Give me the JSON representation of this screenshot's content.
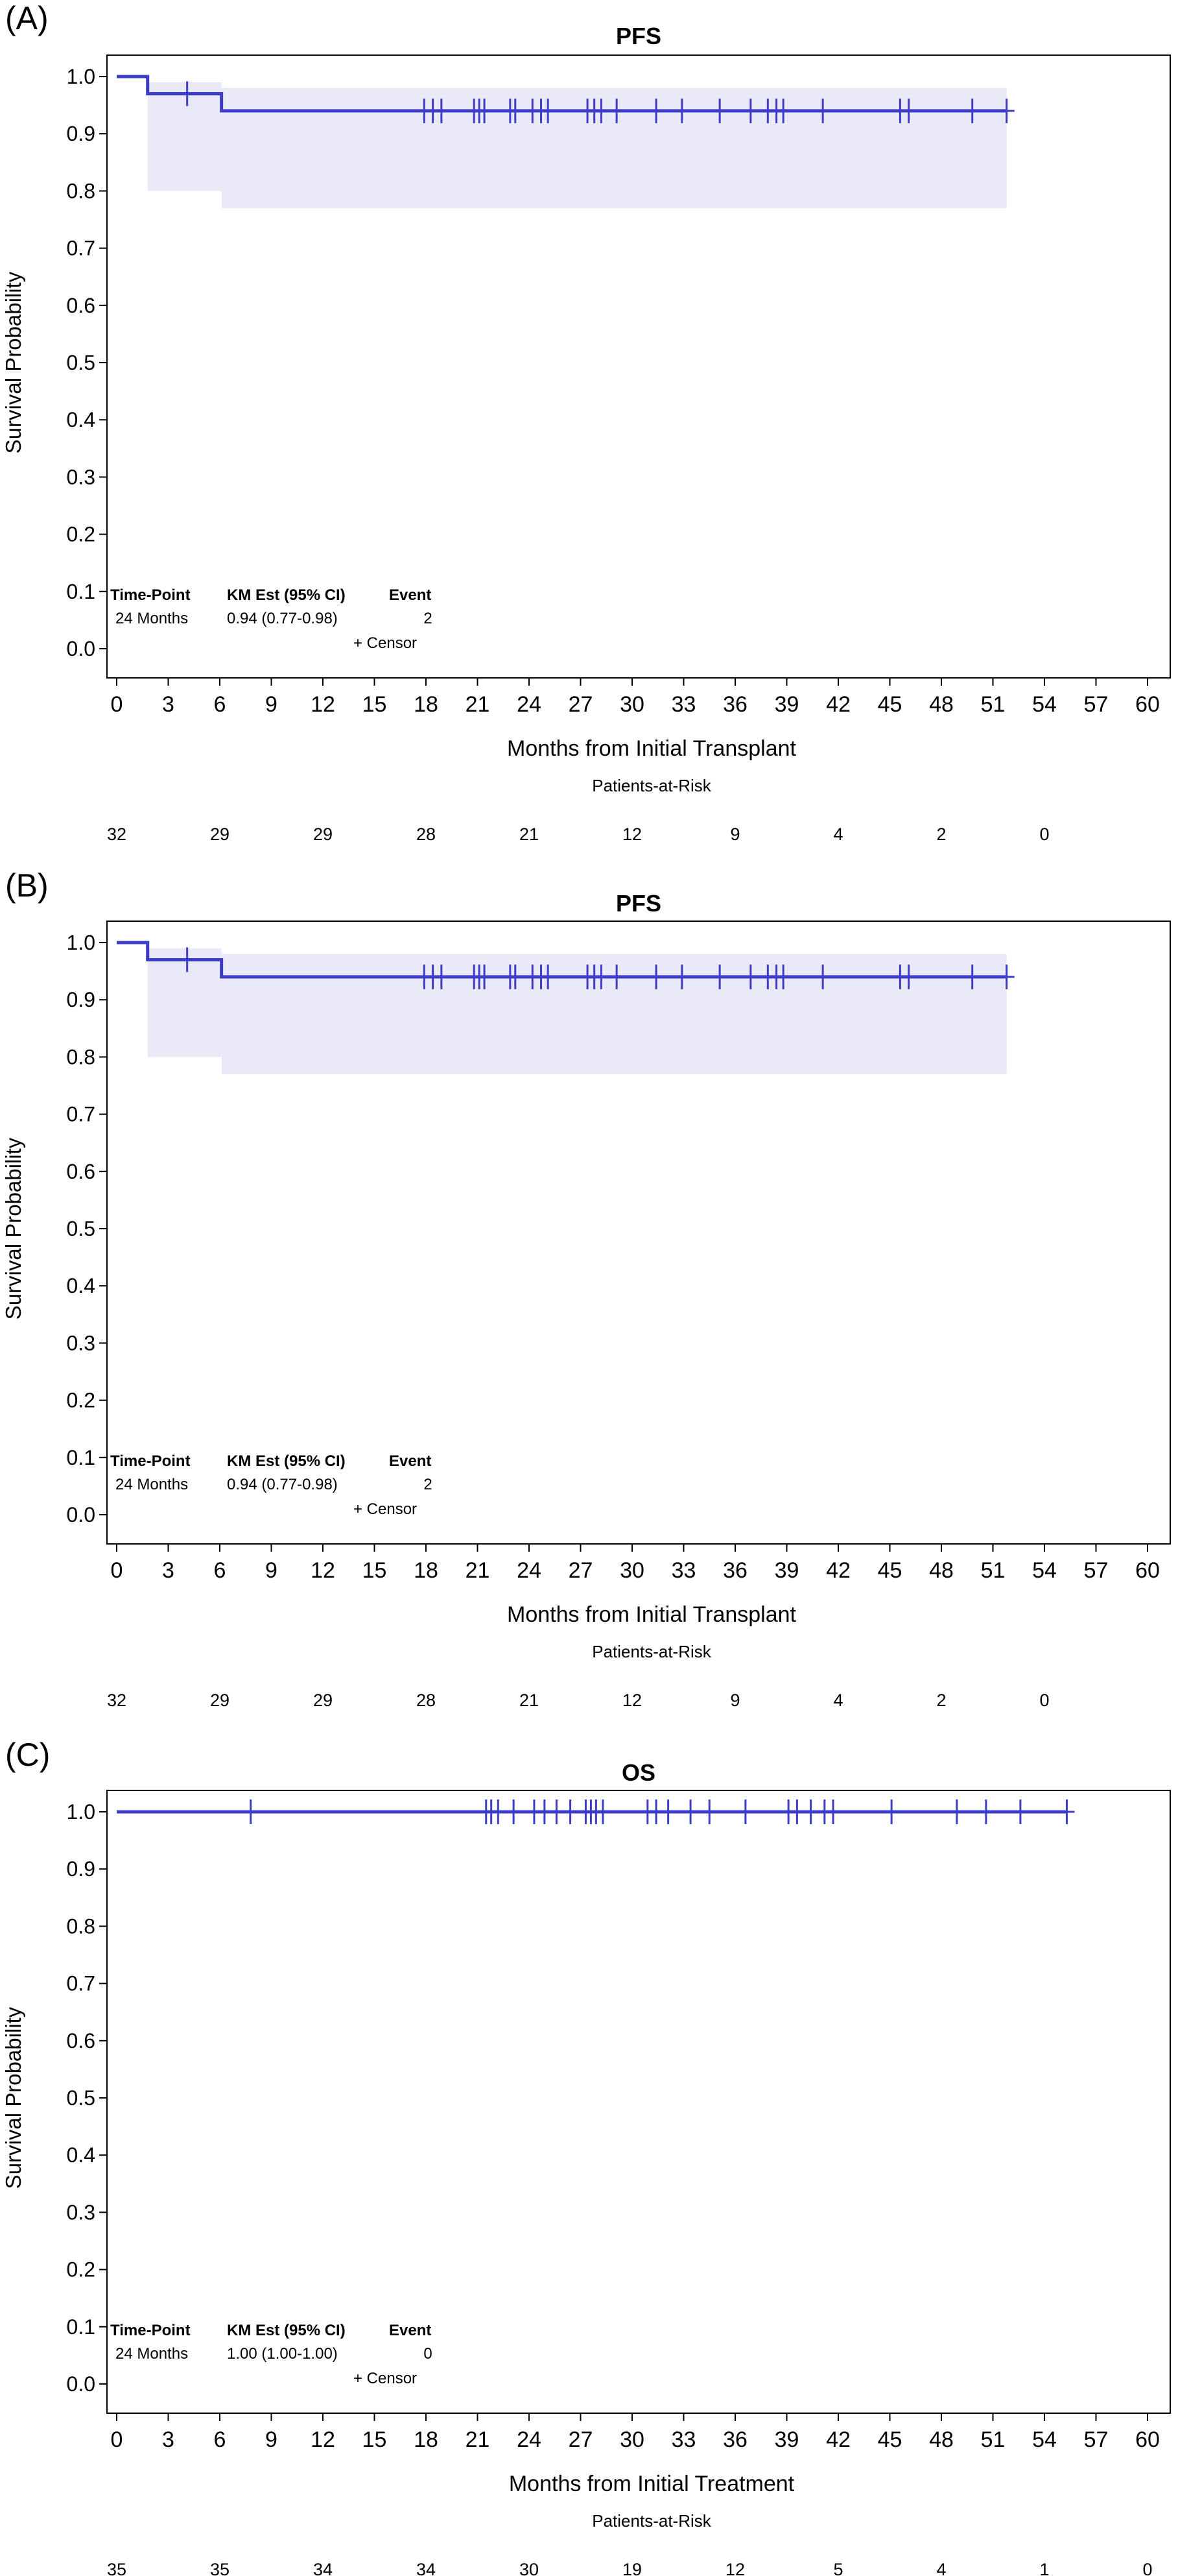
{
  "chart_data": [
    {
      "panel_label": "(A)",
      "type": "line",
      "subtype": "kaplan-meier",
      "title": "PFS",
      "xlabel": "Months from Initial Transplant",
      "ylabel": "Survival Probability",
      "xlim": [
        0,
        60
      ],
      "ylim": [
        0,
        1
      ],
      "x_ticks": [
        "0",
        "3",
        "6",
        "9",
        "12",
        "15",
        "18",
        "21",
        "24",
        "27",
        "30",
        "33",
        "36",
        "39",
        "42",
        "45",
        "48",
        "51",
        "54",
        "57",
        "60"
      ],
      "y_ticks": [
        "0.0",
        "0.1",
        "0.2",
        "0.3",
        "0.4",
        "0.5",
        "0.6",
        "0.7",
        "0.8",
        "0.9",
        "1.0"
      ],
      "grid": false,
      "color": "#3c3cc8",
      "band_color": "#e9e9f8",
      "survival_steps": [
        [
          0,
          1.0
        ],
        [
          1.8,
          0.97
        ],
        [
          6.1,
          0.94
        ],
        [
          51.8,
          0.94
        ]
      ],
      "ci_band": [
        {
          "x0": 1.8,
          "x1": 6.1,
          "lower": 0.8,
          "upper": 0.99
        },
        {
          "x0": 6.1,
          "x1": 51.8,
          "lower": 0.77,
          "upper": 0.98
        }
      ],
      "censor_times": [
        4.1,
        17.9,
        18.4,
        18.9,
        20.8,
        21.1,
        21.4,
        22.9,
        23.2,
        24.2,
        24.7,
        25.1,
        27.4,
        27.8,
        28.2,
        29.1,
        31.4,
        32.9,
        35.1,
        36.9,
        37.9,
        38.4,
        38.8,
        41.1,
        45.6,
        46.1,
        49.8,
        51.8
      ],
      "at_risk_label": "Patients-at-Risk",
      "at_risk": [
        {
          "x": 0,
          "n": "32"
        },
        {
          "x": 6,
          "n": "29"
        },
        {
          "x": 12,
          "n": "29"
        },
        {
          "x": 18,
          "n": "28"
        },
        {
          "x": 24,
          "n": "21"
        },
        {
          "x": 30,
          "n": "12"
        },
        {
          "x": 36,
          "n": "9"
        },
        {
          "x": 42,
          "n": "4"
        },
        {
          "x": 48,
          "n": "2"
        },
        {
          "x": 54,
          "n": "0"
        }
      ],
      "inset": {
        "headers": [
          "Time-Point",
          "KM Est (95% CI)",
          "Event"
        ],
        "row": [
          "24 Months",
          "0.94 (0.77-0.98)",
          "2"
        ],
        "censor_legend": "+ Censor"
      }
    },
    {
      "panel_label": "(B)",
      "type": "line",
      "subtype": "kaplan-meier",
      "title": "PFS",
      "xlabel": "Months from Initial Transplant",
      "ylabel": "Survival Probability",
      "xlim": [
        0,
        60
      ],
      "ylim": [
        0,
        1
      ],
      "x_ticks": [
        "0",
        "3",
        "6",
        "9",
        "12",
        "15",
        "18",
        "21",
        "24",
        "27",
        "30",
        "33",
        "36",
        "39",
        "42",
        "45",
        "48",
        "51",
        "54",
        "57",
        "60"
      ],
      "y_ticks": [
        "0.0",
        "0.1",
        "0.2",
        "0.3",
        "0.4",
        "0.5",
        "0.6",
        "0.7",
        "0.8",
        "0.9",
        "1.0"
      ],
      "grid": false,
      "color": "#3c3cc8",
      "band_color": "#e9e9f8",
      "survival_steps": [
        [
          0,
          1.0
        ],
        [
          1.8,
          0.97
        ],
        [
          6.1,
          0.94
        ],
        [
          51.8,
          0.94
        ]
      ],
      "ci_band": [
        {
          "x0": 1.8,
          "x1": 6.1,
          "lower": 0.8,
          "upper": 0.99
        },
        {
          "x0": 6.1,
          "x1": 51.8,
          "lower": 0.77,
          "upper": 0.98
        }
      ],
      "censor_times": [
        4.1,
        17.9,
        18.4,
        18.9,
        20.8,
        21.1,
        21.4,
        22.9,
        23.2,
        24.2,
        24.7,
        25.1,
        27.4,
        27.8,
        28.2,
        29.1,
        31.4,
        32.9,
        35.1,
        36.9,
        37.9,
        38.4,
        38.8,
        41.1,
        45.6,
        46.1,
        49.8,
        51.8
      ],
      "at_risk_label": "Patients-at-Risk",
      "at_risk": [
        {
          "x": 0,
          "n": "32"
        },
        {
          "x": 6,
          "n": "29"
        },
        {
          "x": 12,
          "n": "29"
        },
        {
          "x": 18,
          "n": "28"
        },
        {
          "x": 24,
          "n": "21"
        },
        {
          "x": 30,
          "n": "12"
        },
        {
          "x": 36,
          "n": "9"
        },
        {
          "x": 42,
          "n": "4"
        },
        {
          "x": 48,
          "n": "2"
        },
        {
          "x": 54,
          "n": "0"
        }
      ],
      "inset": {
        "headers": [
          "Time-Point",
          "KM Est (95% CI)",
          "Event"
        ],
        "row": [
          "24 Months",
          "0.94 (0.77-0.98)",
          "2"
        ],
        "censor_legend": "+ Censor"
      }
    },
    {
      "panel_label": "(C)",
      "type": "line",
      "subtype": "kaplan-meier",
      "title": "OS",
      "xlabel": "Months from Initial Treatment",
      "ylabel": "Survival Probability",
      "xlim": [
        0,
        60
      ],
      "ylim": [
        0,
        1
      ],
      "x_ticks": [
        "0",
        "3",
        "6",
        "9",
        "12",
        "15",
        "18",
        "21",
        "24",
        "27",
        "30",
        "33",
        "36",
        "39",
        "42",
        "45",
        "48",
        "51",
        "54",
        "57",
        "60"
      ],
      "y_ticks": [
        "0.0",
        "0.1",
        "0.2",
        "0.3",
        "0.4",
        "0.5",
        "0.6",
        "0.7",
        "0.8",
        "0.9",
        "1.0"
      ],
      "grid": false,
      "color": "#3c3cc8",
      "band_color": "#e9e9f8",
      "survival_steps": [
        [
          0,
          1.0
        ],
        [
          55.3,
          1.0
        ]
      ],
      "ci_band": [],
      "censor_times": [
        7.8,
        21.5,
        21.8,
        22.2,
        23.1,
        24.3,
        24.9,
        25.6,
        26.4,
        27.3,
        27.6,
        27.9,
        28.3,
        30.9,
        31.4,
        32.1,
        33.4,
        34.5,
        36.6,
        39.1,
        39.6,
        40.4,
        41.2,
        41.7,
        45.1,
        48.9,
        50.6,
        52.6,
        55.3
      ],
      "at_risk_label": "Patients-at-Risk",
      "at_risk": [
        {
          "x": 0,
          "n": "35"
        },
        {
          "x": 6,
          "n": "35"
        },
        {
          "x": 12,
          "n": "34"
        },
        {
          "x": 18,
          "n": "34"
        },
        {
          "x": 24,
          "n": "30"
        },
        {
          "x": 30,
          "n": "19"
        },
        {
          "x": 36,
          "n": "12"
        },
        {
          "x": 42,
          "n": "5"
        },
        {
          "x": 48,
          "n": "4"
        },
        {
          "x": 54,
          "n": "1"
        },
        {
          "x": 60,
          "n": "0"
        }
      ],
      "inset": {
        "headers": [
          "Time-Point",
          "KM Est (95% CI)",
          "Event"
        ],
        "row": [
          "24 Months",
          "1.00 (1.00-1.00)",
          "0"
        ],
        "censor_legend": "+ Censor"
      }
    }
  ]
}
